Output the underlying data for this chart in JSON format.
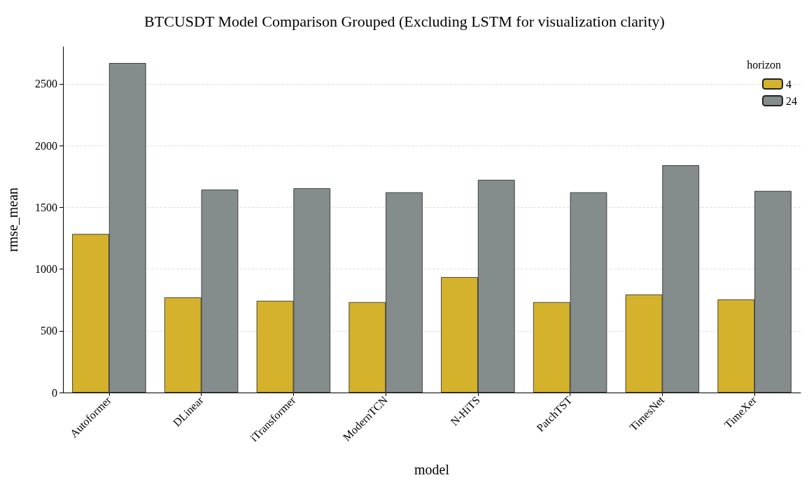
{
  "chart_data": {
    "type": "bar",
    "title": "BTCUSDT Model Comparison Grouped (Excluding LSTM for visualization clarity)",
    "xlabel": "model",
    "ylabel": "rmse_mean",
    "legend_title": "horizon",
    "categories": [
      "Autoformer",
      "DLinear",
      "iTransformer",
      "ModernTCN",
      "N-HiTS",
      "PatchTST",
      "TimesNet",
      "TimeXer"
    ],
    "series": [
      {
        "name": "4",
        "color": "#d4b22c",
        "values": [
          1284,
          771,
          743,
          732,
          935,
          732,
          794,
          754
        ]
      },
      {
        "name": "24",
        "color": "#848c8c",
        "values": [
          2669,
          1644,
          1655,
          1622,
          1723,
          1622,
          1841,
          1633
        ]
      }
    ],
    "ylim": [
      0,
      2800
    ],
    "yticks": [
      0,
      500,
      1000,
      1500,
      2000,
      2500
    ],
    "grid": "y",
    "legend": "top right"
  }
}
